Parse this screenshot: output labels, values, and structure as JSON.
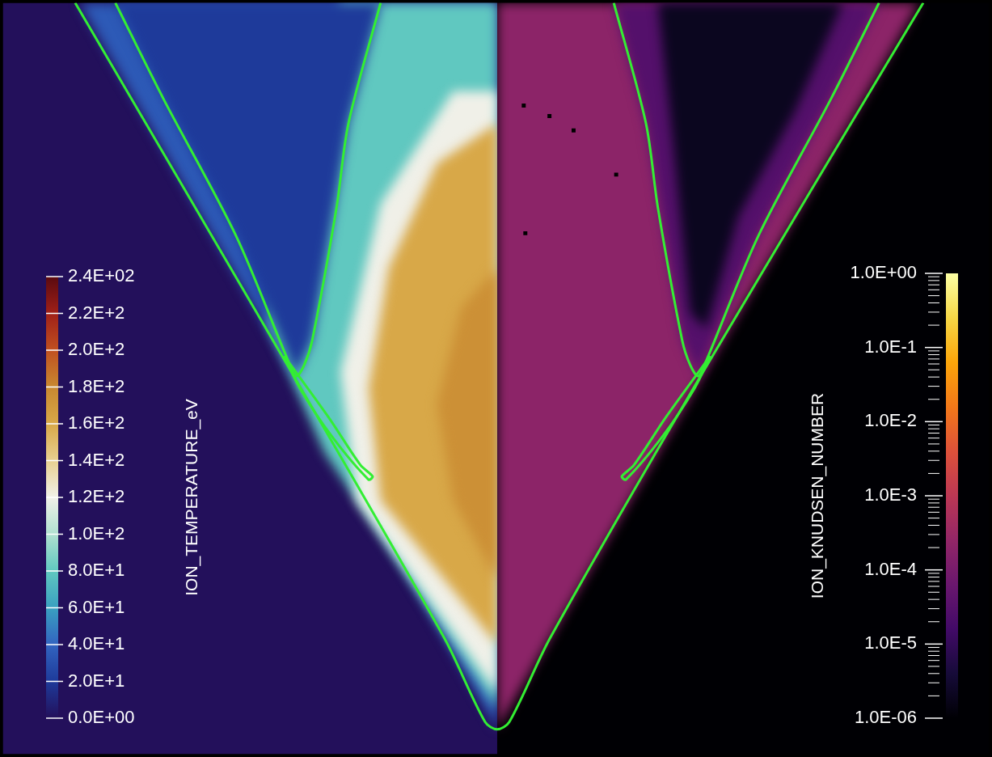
{
  "chart_data": {
    "type": "field",
    "xlim": [
      -6.15,
      6.12
    ],
    "ylim": [
      0,
      9.36
    ],
    "grid": false,
    "tick_labels": false,
    "fields": [
      {
        "colorbar": {
          "title": "ION_TEMPERATURE_eV",
          "range": [
            0,
            240
          ],
          "ticks": [
            {
              "value": 0,
              "label": "0.0E+00"
            },
            {
              "value": 20,
              "label": "2.0E+1"
            },
            {
              "value": 40,
              "label": "4.0E+1"
            },
            {
              "value": 60,
              "label": "6.0E+1"
            },
            {
              "value": 80,
              "label": "8.0E+1"
            },
            {
              "value": 100,
              "label": "1.0E+2"
            },
            {
              "value": 120,
              "label": "1.2E+2"
            },
            {
              "value": 140,
              "label": "1.4E+2"
            },
            {
              "value": 160,
              "label": "1.6E+2"
            },
            {
              "value": 180,
              "label": "1.8E+2"
            },
            {
              "value": 200,
              "label": "2.0E+2"
            },
            {
              "value": 220,
              "label": "2.2E+2"
            },
            {
              "value": 240,
              "label": "2.4E+02"
            }
          ],
          "colors": [
            "#23105b",
            "#1e3a9a",
            "#3264c0",
            "#3aa0c0",
            "#60c8c0",
            "#b0e0d0",
            "#f0f0e8",
            "#e8d090",
            "#d8a848",
            "#c88830",
            "#c05020",
            "#a02018",
            "#5a0a10"
          ]
        },
        "regions": [
          {
            "value": 0,
            "points": [
              [
                -6.15,
                0
              ],
              [
                0,
                0
              ],
              [
                0,
                9.36
              ],
              [
                -6.15,
                9.36
              ]
            ]
          },
          {
            "value": 35,
            "points": [
              [
                0,
                0.31
              ],
              [
                -5.2,
                9.36
              ],
              [
                0,
                9.36
              ]
            ]
          },
          {
            "value": 80,
            "points": [
              [
                0,
                0.56
              ],
              [
                -2.15,
                3.76
              ],
              [
                -2.85,
                5.36
              ],
              [
                -1.95,
                9.36
              ],
              [
                0,
                9.36
              ]
            ]
          },
          {
            "value": 120,
            "points": [
              [
                0,
                0.76
              ],
              [
                -1.75,
                3.16
              ],
              [
                -1.95,
                4.76
              ],
              [
                -1.45,
                6.86
              ],
              [
                -0.55,
                8.26
              ],
              [
                0,
                8.26
              ]
            ]
          },
          {
            "value": 160,
            "points": [
              [
                0,
                1.36
              ],
              [
                -1.45,
                3.16
              ],
              [
                -1.6,
                4.56
              ],
              [
                -1.35,
                6.06
              ],
              [
                -0.75,
                7.36
              ],
              [
                0,
                7.86
              ]
            ]
          },
          {
            "value": 175,
            "points": [
              [
                0,
                2.16
              ],
              [
                -0.55,
                3.16
              ],
              [
                -0.75,
                4.36
              ],
              [
                -0.45,
                5.56
              ],
              [
                0,
                6.06
              ]
            ]
          },
          {
            "value": 20,
            "points": [
              [
                -4.75,
                9.36
              ],
              [
                -4.15,
                8.16
              ],
              [
                -3.25,
                6.46
              ],
              [
                -2.5,
                4.71
              ],
              [
                -2.3,
                5.16
              ],
              [
                -1.85,
                7.86
              ],
              [
                -1.45,
                9.36
              ]
            ]
          }
        ]
      },
      {
        "colorbar": {
          "title": "ION_KNUDSEN_NUMBER",
          "log": true,
          "range": [
            1e-06,
            1
          ],
          "ticks": [
            {
              "value": 1,
              "label": "1.0E+00"
            },
            {
              "value": 0.1,
              "label": "1.0E-1"
            },
            {
              "value": 0.01,
              "label": "1.0E-2"
            },
            {
              "value": 0.001,
              "label": "1.0E-3"
            },
            {
              "value": 0.0001,
              "label": "1.0E-4"
            },
            {
              "value": 1e-05,
              "label": "1.0E-5"
            },
            {
              "value": 1e-06,
              "label": "1.0E-06"
            }
          ],
          "colors": [
            "#000004",
            "#160b39",
            "#420a68",
            "#6a176e",
            "#932667",
            "#bc3754",
            "#dd513a",
            "#f37819",
            "#fca50a",
            "#f6d746",
            "#fcffa4"
          ]
        },
        "regions": [
          {
            "value": 1e-06,
            "points": [
              [
                0,
                0
              ],
              [
                6.12,
                0
              ],
              [
                6.12,
                9.36
              ],
              [
                0,
                9.36
              ]
            ]
          },
          {
            "value": 0.0002,
            "points": [
              [
                0,
                0.31
              ],
              [
                0,
                9.36
              ],
              [
                5.25,
                9.36
              ]
            ]
          },
          {
            "value": 3e-05,
            "points": [
              [
                4.75,
                9.36
              ],
              [
                4.15,
                8.16
              ],
              [
                3.25,
                6.46
              ],
              [
                2.5,
                4.71
              ],
              [
                2.3,
                5.16
              ],
              [
                1.85,
                7.86
              ],
              [
                1.45,
                9.36
              ]
            ]
          },
          {
            "value": 2e-06,
            "points": [
              [
                4.3,
                9.36
              ],
              [
                3.7,
                8.0
              ],
              [
                3.0,
                6.7
              ],
              [
                2.6,
                5.3
              ],
              [
                2.4,
                5.5
              ],
              [
                2.2,
                7.5
              ],
              [
                2.0,
                9.36
              ]
            ]
          }
        ]
      }
    ],
    "series": [
      {
        "color": "#33ee33",
        "line_style": "solid",
        "values": [
          [
            -5.25,
            9.36
          ],
          [
            -2.53,
            4.71
          ],
          [
            -0.66,
            1.45
          ],
          [
            -0.15,
            0.4
          ],
          [
            0,
            0.31
          ],
          [
            0.15,
            0.4
          ],
          [
            0.66,
            1.45
          ],
          [
            2.53,
            4.71
          ],
          [
            5.3,
            9.36
          ]
        ]
      },
      {
        "color": "#33ee33",
        "line_style": "solid",
        "values": [
          [
            -4.75,
            9.36
          ],
          [
            -4.15,
            8.16
          ],
          [
            -3.25,
            6.46
          ],
          [
            -2.6,
            4.9
          ],
          [
            -2.5,
            4.71
          ],
          [
            -2.4,
            4.85
          ],
          [
            -2.3,
            5.16
          ],
          [
            -2.0,
            6.8
          ],
          [
            -1.85,
            7.86
          ],
          [
            -1.45,
            9.36
          ]
        ]
      },
      {
        "color": "#33ee33",
        "line_style": "solid",
        "values": [
          [
            -2.65,
            4.96
          ],
          [
            -2.1,
            4.2
          ],
          [
            -1.7,
            3.6
          ],
          [
            -1.55,
            3.46
          ],
          [
            -1.6,
            3.42
          ],
          [
            -2.05,
            3.95
          ],
          [
            -2.45,
            4.55
          ],
          [
            -2.65,
            4.96
          ]
        ]
      },
      {
        "color": "#33ee33",
        "line_style": "solid",
        "values": [
          [
            4.75,
            9.36
          ],
          [
            4.15,
            8.16
          ],
          [
            3.25,
            6.46
          ],
          [
            2.6,
            4.9
          ],
          [
            2.5,
            4.71
          ],
          [
            2.4,
            4.85
          ],
          [
            2.3,
            5.16
          ],
          [
            2.0,
            6.8
          ],
          [
            1.85,
            7.86
          ],
          [
            1.45,
            9.36
          ]
        ]
      },
      {
        "color": "#33ee33",
        "line_style": "solid",
        "values": [
          [
            2.65,
            4.96
          ],
          [
            2.1,
            4.2
          ],
          [
            1.7,
            3.6
          ],
          [
            1.55,
            3.46
          ],
          [
            1.6,
            3.42
          ],
          [
            2.05,
            3.95
          ],
          [
            2.45,
            4.55
          ],
          [
            2.65,
            4.96
          ]
        ]
      },
      {
        "type": "scatter",
        "marker": "square",
        "color": "#000000",
        "values": [
          [
            0.33,
            8.08
          ],
          [
            0.65,
            7.95
          ],
          [
            0.95,
            7.77
          ],
          [
            1.48,
            7.22
          ],
          [
            0.35,
            6.49
          ]
        ]
      }
    ]
  }
}
